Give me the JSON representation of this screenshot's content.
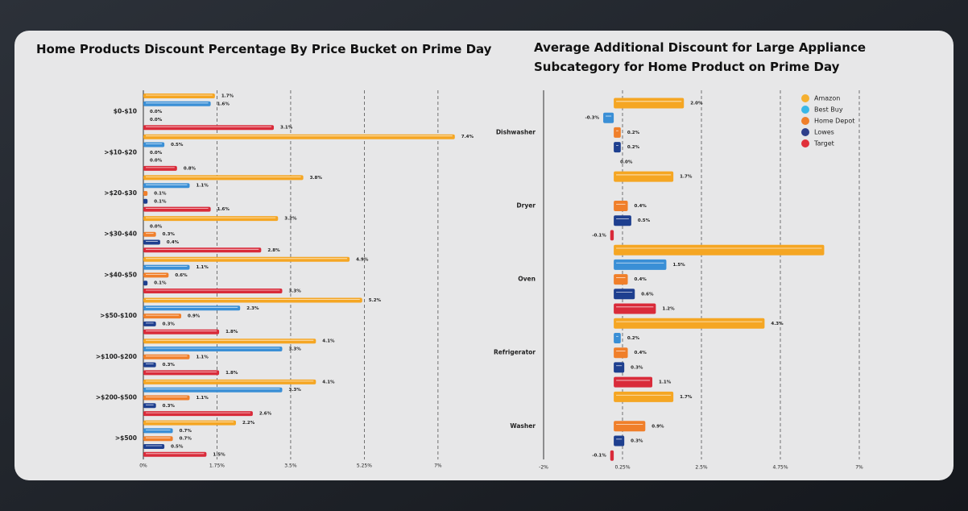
{
  "chart_data": [
    {
      "type": "bar",
      "orientation": "horizontal",
      "title": "Home Products Discount Percentage By Price Bucket on Prime Day",
      "categories": [
        "$0-$10",
        ">$10-$20",
        ">$20-$30",
        ">$30-$40",
        ">$40-$50",
        ">$50-$100",
        ">$100-$200",
        ">$200-$500",
        ">$500"
      ],
      "series": [
        {
          "color": "#f5a623",
          "values": [
            1.7,
            7.4,
            3.8,
            3.2,
            4.9,
            5.2,
            4.1,
            4.1,
            2.2
          ],
          "value_labels": [
            "1.7%",
            "7.4%",
            "3.8%",
            "3.2%",
            "4.9%",
            "5.2%",
            "4.1%",
            "4.1%",
            "2.2%"
          ]
        },
        {
          "color": "#3a8fd6",
          "values": [
            1.6,
            0.5,
            1.1,
            0.0,
            1.1,
            2.3,
            3.3,
            3.3,
            0.7
          ],
          "value_labels": [
            "1.6%",
            "0.5%",
            "1.1%",
            "0.0%",
            "1.1%",
            "2.3%",
            "3.3%",
            "3.3%",
            "0.7%"
          ]
        },
        {
          "color": "#f07f2a",
          "values": [
            0.0,
            0.0,
            0.1,
            0.3,
            0.6,
            0.9,
            1.1,
            1.1,
            0.7
          ],
          "value_labels": [
            "0.0%",
            "0.0%",
            "0.1%",
            "0.3%",
            "0.6%",
            "0.9%",
            "1.1%",
            "1.1%",
            "0.7%"
          ]
        },
        {
          "color": "#1e3f8f",
          "values": [
            0.0,
            0.0,
            0.1,
            0.4,
            0.1,
            0.3,
            0.3,
            0.3,
            0.5
          ],
          "value_labels": [
            "0.0%",
            "0.0%",
            "0.1%",
            "0.4%",
            "0.1%",
            "0.3%",
            "0.3%",
            "0.3%",
            "0.5%"
          ]
        },
        {
          "color": "#d92b3a",
          "values": [
            3.1,
            0.8,
            1.6,
            2.8,
            3.3,
            1.8,
            1.8,
            2.6,
            1.5
          ],
          "value_labels": [
            "3.1%",
            "0.8%",
            "1.6%",
            "2.8%",
            "3.3%",
            "1.8%",
            "1.8%",
            "2.6%",
            "1.5%"
          ]
        }
      ],
      "xlim": [
        0,
        7.5
      ],
      "xticks": [
        {
          "value": 0,
          "label": "0%"
        },
        {
          "value": 1.75,
          "label": "1.75%"
        },
        {
          "value": 3.5,
          "label": "3.5%"
        },
        {
          "value": 5.25,
          "label": "5.25%"
        },
        {
          "value": 7,
          "label": "7%"
        }
      ],
      "grid": true
    },
    {
      "type": "bar",
      "orientation": "horizontal",
      "title": [
        "Average Additional Discount for Large Appliance",
        "Subcategory for Home Product on Prime Day"
      ],
      "categories": [
        "Dishwasher",
        "Dryer",
        "Oven",
        "Refrigerator",
        "Washer"
      ],
      "series": [
        {
          "name": "Amazon",
          "color": "#f5a623",
          "legend_color": "#f5b030",
          "values": [
            2.0,
            1.7,
            6.0,
            4.3,
            1.7
          ],
          "value_labels": [
            "2.0%",
            "1.7%",
            null,
            "4.3%",
            "1.7%"
          ]
        },
        {
          "name": "Best Buy",
          "color": "#3a8fd6",
          "legend_color": "#3ab8e8",
          "values": [
            -0.3,
            null,
            1.5,
            0.2,
            null
          ],
          "value_labels": [
            "-0.3%",
            null,
            "1.5%",
            "0.2%",
            null
          ]
        },
        {
          "name": "Home Depot",
          "color": "#f07f2a",
          "legend_color": "#f07f2a",
          "values": [
            0.2,
            0.4,
            0.4,
            0.4,
            0.9
          ],
          "value_labels": [
            "0.2%",
            "0.4%",
            "0.4%",
            "0.4%",
            "0.9%"
          ]
        },
        {
          "name": "Lowes",
          "color": "#1e3f8f",
          "legend_color": "#2e3f8a",
          "values": [
            0.2,
            0.5,
            0.6,
            0.3,
            0.3
          ],
          "value_labels": [
            "0.2%",
            "0.5%",
            "0.6%",
            "0.3%",
            "0.3%"
          ]
        },
        {
          "name": "Target",
          "color": "#d92b3a",
          "legend_color": "#e0303a",
          "values": [
            0.0,
            -0.1,
            1.2,
            1.1,
            -0.1
          ],
          "value_labels": [
            "0.0%",
            "-0.1%",
            "1.2%",
            "1.1%",
            "-0.1%"
          ]
        }
      ],
      "xlim": [
        -2,
        7
      ],
      "xticks": [
        {
          "value": -2,
          "label": "-2%"
        },
        {
          "value": 0.25,
          "label": "0.25%"
        },
        {
          "value": 2.5,
          "label": "2.5%"
        },
        {
          "value": 4.75,
          "label": "4.75%"
        },
        {
          "value": 7,
          "label": "7%"
        }
      ],
      "grid": true,
      "legend": "top-right"
    }
  ]
}
